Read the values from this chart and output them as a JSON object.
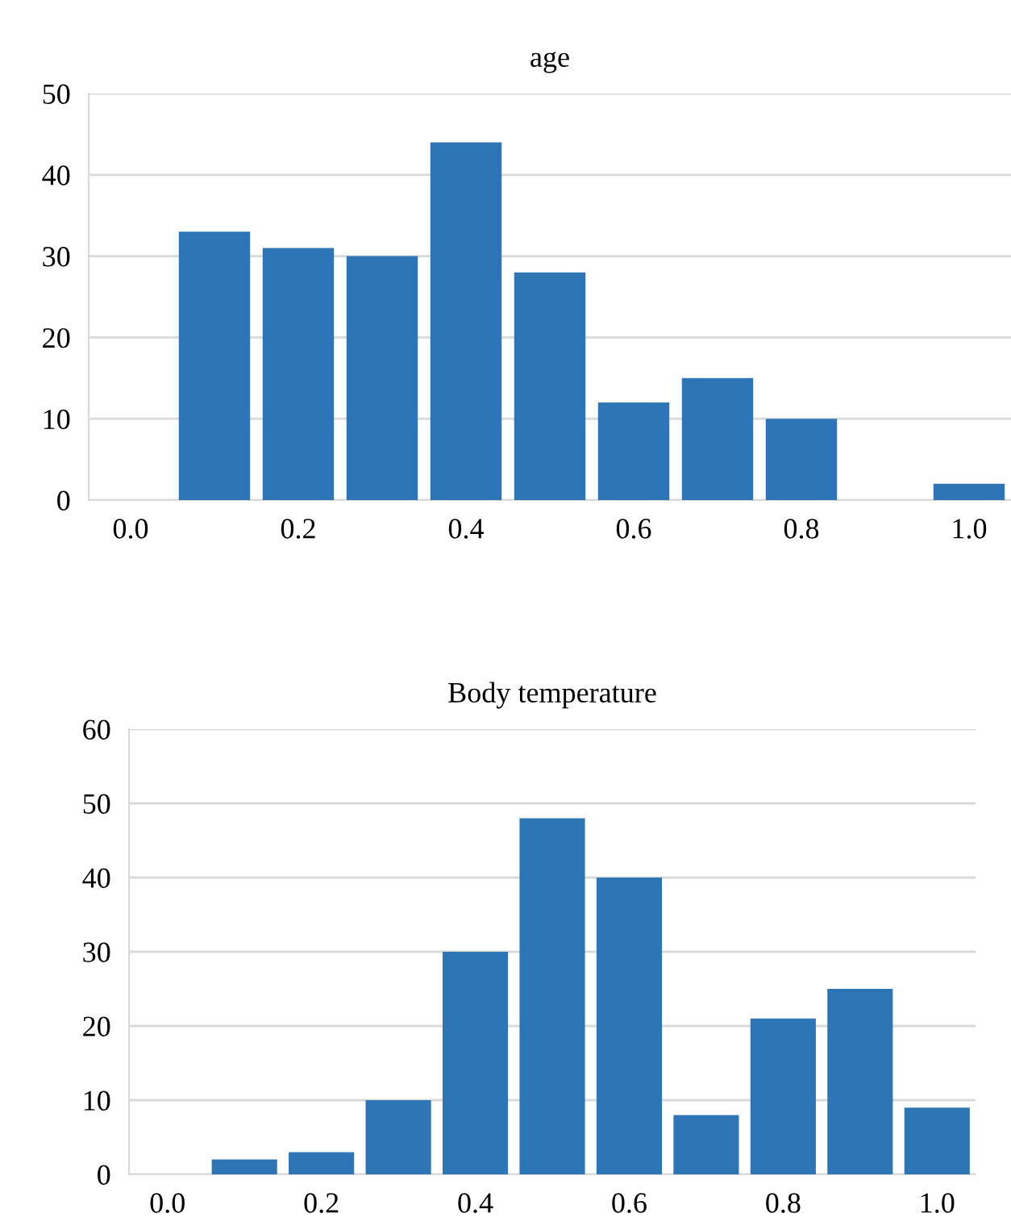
{
  "chart_data": [
    {
      "type": "bar",
      "title": "age",
      "categories": [
        "0.0",
        null,
        "0.2",
        null,
        "0.4",
        null,
        "0.6",
        null,
        "0.8",
        null,
        "1.0"
      ],
      "values": [
        0,
        33,
        31,
        30,
        44,
        28,
        12,
        15,
        10,
        0,
        2
      ],
      "color": "#2e75b6",
      "ylim": [
        0,
        50
      ],
      "yticks": [
        0,
        10,
        20,
        30,
        40,
        50
      ],
      "grid": "y"
    },
    {
      "type": "bar",
      "title": "Body temperature",
      "categories": [
        "0.0",
        null,
        "0.2",
        null,
        "0.4",
        null,
        "0.6",
        null,
        "0.8",
        null,
        "1.0"
      ],
      "values": [
        0,
        2,
        3,
        10,
        30,
        48,
        40,
        8,
        21,
        25,
        9
      ],
      "color": "#2e75b6",
      "ylim": [
        0,
        60
      ],
      "yticks": [
        0,
        10,
        20,
        30,
        40,
        50,
        60
      ],
      "grid": "y"
    }
  ]
}
